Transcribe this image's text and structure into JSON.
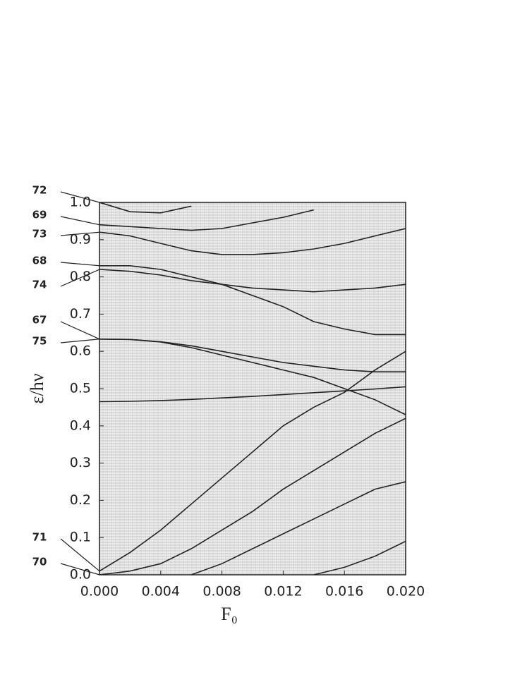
{
  "chart_data": {
    "type": "line",
    "x_label": "F₀",
    "y_label": "ε/hν",
    "x": [
      0,
      0.002,
      0.004,
      0.006,
      0.008,
      0.01,
      0.012,
      0.014,
      0.016,
      0.018,
      0.02
    ],
    "xlim": [
      0,
      0.02
    ],
    "xticks": [
      {
        "value": 0,
        "label": "0.000"
      },
      {
        "value": 0.004,
        "label": "0.004"
      },
      {
        "value": 0.008,
        "label": "0.008"
      },
      {
        "value": 0.012,
        "label": "0.012"
      },
      {
        "value": 0.016,
        "label": "0.016"
      },
      {
        "value": 0.02,
        "label": "0.020"
      }
    ],
    "ylim": [
      0,
      1
    ],
    "yticks": [
      {
        "value": 0,
        "label": "0.0"
      },
      0.1,
      0.2,
      0.3,
      0.4,
      0.5,
      0.6,
      0.7,
      0.8,
      0.9,
      {
        "value": 1,
        "label": "1.0"
      }
    ],
    "color": "#222",
    "series": [
      {
        "name": "72",
        "values": [
          1.0,
          0.975,
          0.972,
          0.99,
          null,
          null,
          null,
          null,
          null,
          null,
          null
        ]
      },
      {
        "name": "69",
        "values": [
          0.94,
          0.935,
          0.93,
          0.925,
          0.93,
          0.945,
          0.96,
          0.98,
          null,
          null,
          null
        ]
      },
      {
        "name": "73",
        "values": [
          0.92,
          0.91,
          0.89,
          0.87,
          0.86,
          0.86,
          0.865,
          0.875,
          0.89,
          0.91,
          0.93
        ]
      },
      {
        "name": "68",
        "values": [
          0.83,
          0.83,
          0.82,
          0.8,
          0.78,
          0.75,
          0.72,
          0.68,
          0.66,
          0.645,
          0.645
        ]
      },
      {
        "name": "74",
        "values": [
          0.82,
          0.815,
          0.805,
          0.79,
          0.78,
          0.77,
          0.765,
          0.76,
          0.765,
          0.77,
          0.78
        ]
      },
      {
        "name": "67",
        "values": [
          0.633,
          0.632,
          0.626,
          0.615,
          0.6,
          0.585,
          0.57,
          0.56,
          0.55,
          0.545,
          0.545
        ]
      },
      {
        "name": "75",
        "values": [
          0.633,
          0.632,
          0.625,
          0.61,
          0.59,
          0.57,
          0.55,
          0.53,
          0.5,
          0.47,
          0.43
        ]
      },
      {
        "values": [
          0.465,
          0.466,
          0.468,
          0.471,
          0.475,
          0.479,
          0.484,
          0.489,
          0.494,
          0.499,
          0.505
        ]
      },
      {
        "name": "71",
        "values": [
          0.01,
          0.06,
          0.12,
          0.19,
          0.26,
          0.33,
          0.4,
          0.45,
          0.49,
          0.55,
          0.6
        ]
      },
      {
        "name": "70",
        "values": [
          0.0,
          0.01,
          0.03,
          0.07,
          0.12,
          0.17,
          0.23,
          0.28,
          0.33,
          0.38,
          0.42
        ]
      },
      {
        "values": [
          null,
          null,
          null,
          0.0,
          0.03,
          0.07,
          0.11,
          0.15,
          0.19,
          0.23,
          0.25
        ]
      },
      {
        "values": [
          null,
          null,
          null,
          null,
          null,
          null,
          null,
          0.0,
          0.02,
          0.05,
          0.09
        ]
      }
    ]
  }
}
